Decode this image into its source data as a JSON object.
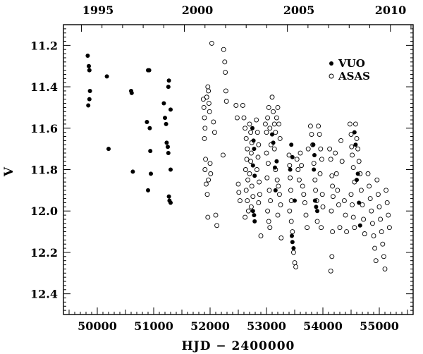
{
  "chart_data": {
    "type": "scatter",
    "xlabel": "HJD − 2400000",
    "ylabel": "V",
    "top_axis_ticks": [
      "1995",
      "2000",
      "2005",
      "2010"
    ],
    "xlim": [
      49400,
      55600
    ],
    "ylim": [
      12.5,
      11.1
    ],
    "y_inverted": true,
    "grid": false,
    "legend_position": "top-right",
    "x_ticks": [
      50000,
      51000,
      52000,
      53000,
      54000,
      55000
    ],
    "y_ticks": [
      11.2,
      11.4,
      11.6,
      11.8,
      12.0,
      12.2,
      12.4
    ],
    "series": [
      {
        "name": "VUO",
        "marker": "filled-circle",
        "color": "#000000",
        "points": [
          [
            49830,
            11.25
          ],
          [
            49850,
            11.3
          ],
          [
            49860,
            11.32
          ],
          [
            49870,
            11.42
          ],
          [
            49860,
            11.46
          ],
          [
            49840,
            11.49
          ],
          [
            50170,
            11.35
          ],
          [
            50200,
            11.7
          ],
          [
            50600,
            11.42
          ],
          [
            50610,
            11.43
          ],
          [
            50630,
            11.81
          ],
          [
            50900,
            11.32
          ],
          [
            50920,
            11.32
          ],
          [
            50880,
            11.57
          ],
          [
            50930,
            11.6
          ],
          [
            50940,
            11.71
          ],
          [
            50950,
            11.82
          ],
          [
            50900,
            11.9
          ],
          [
            51180,
            11.48
          ],
          [
            51200,
            11.55
          ],
          [
            51220,
            11.58
          ],
          [
            51260,
            11.4
          ],
          [
            51270,
            11.37
          ],
          [
            51300,
            11.51
          ],
          [
            51230,
            11.67
          ],
          [
            51250,
            11.69
          ],
          [
            51260,
            11.72
          ],
          [
            51300,
            11.8
          ],
          [
            51270,
            11.93
          ],
          [
            51280,
            11.95
          ],
          [
            51300,
            11.96
          ],
          [
            52750,
            11.6
          ],
          [
            52770,
            11.66
          ],
          [
            52780,
            11.7
          ],
          [
            52760,
            11.78
          ],
          [
            52790,
            11.83
          ],
          [
            52760,
            12.0
          ],
          [
            52780,
            12.02
          ],
          [
            52790,
            12.05
          ],
          [
            53100,
            11.63
          ],
          [
            53120,
            11.67
          ],
          [
            53150,
            11.79
          ],
          [
            53180,
            11.76
          ],
          [
            53160,
            11.9
          ],
          [
            53440,
            11.68
          ],
          [
            53460,
            11.74
          ],
          [
            53420,
            11.8
          ],
          [
            53450,
            12.12
          ],
          [
            53460,
            12.15
          ],
          [
            53480,
            12.18
          ],
          [
            53500,
            11.95
          ],
          [
            53830,
            11.68
          ],
          [
            53850,
            11.73
          ],
          [
            53840,
            11.8
          ],
          [
            53860,
            11.95
          ],
          [
            53880,
            11.98
          ],
          [
            53900,
            12.0
          ],
          [
            54560,
            11.62
          ],
          [
            54580,
            11.68
          ],
          [
            54600,
            11.85
          ],
          [
            54620,
            11.82
          ],
          [
            54640,
            11.96
          ],
          [
            54660,
            12.07
          ]
        ]
      },
      {
        "name": "ASAS",
        "marker": "open-circle",
        "color": "#000000",
        "points": [
          [
            51880,
            11.46
          ],
          [
            51890,
            11.5
          ],
          [
            51900,
            11.55
          ],
          [
            51910,
            11.6
          ],
          [
            51900,
            11.65
          ],
          [
            51920,
            11.75
          ],
          [
            51910,
            11.8
          ],
          [
            51930,
            11.87
          ],
          [
            51950,
            11.92
          ],
          [
            51960,
            12.03
          ],
          [
            51940,
            11.45
          ],
          [
            51960,
            11.4
          ],
          [
            51970,
            11.42
          ],
          [
            51980,
            11.48
          ],
          [
            51990,
            11.52
          ],
          [
            52000,
            11.77
          ],
          [
            52010,
            11.82
          ],
          [
            51970,
            11.85
          ],
          [
            52030,
            11.19
          ],
          [
            52060,
            11.57
          ],
          [
            52080,
            11.62
          ],
          [
            52100,
            12.02
          ],
          [
            52120,
            12.07
          ],
          [
            52240,
            11.22
          ],
          [
            52260,
            11.28
          ],
          [
            52270,
            11.33
          ],
          [
            52280,
            11.42
          ],
          [
            52290,
            11.47
          ],
          [
            52230,
            11.73
          ],
          [
            52460,
            11.49
          ],
          [
            52480,
            11.55
          ],
          [
            52500,
            11.87
          ],
          [
            52510,
            11.91
          ],
          [
            52530,
            11.95
          ],
          [
            52580,
            11.49
          ],
          [
            52600,
            11.55
          ],
          [
            52620,
            11.6
          ],
          [
            52640,
            11.65
          ],
          [
            52660,
            11.7
          ],
          [
            52650,
            11.75
          ],
          [
            52630,
            11.8
          ],
          [
            52670,
            11.85
          ],
          [
            52640,
            11.9
          ],
          [
            52660,
            11.95
          ],
          [
            52680,
            12.0
          ],
          [
            52620,
            12.03
          ],
          [
            52700,
            11.58
          ],
          [
            52720,
            11.62
          ],
          [
            52740,
            11.67
          ],
          [
            52730,
            11.72
          ],
          [
            52720,
            11.76
          ],
          [
            52700,
            11.82
          ],
          [
            52740,
            11.88
          ],
          [
            52760,
            11.93
          ],
          [
            52730,
            11.98
          ],
          [
            52820,
            11.56
          ],
          [
            52840,
            11.62
          ],
          [
            52860,
            11.68
          ],
          [
            52850,
            11.74
          ],
          [
            52830,
            11.8
          ],
          [
            52870,
            11.86
          ],
          [
            52880,
            11.92
          ],
          [
            52860,
            11.96
          ],
          [
            52900,
            12.12
          ],
          [
            52980,
            11.58
          ],
          [
            53000,
            11.62
          ],
          [
            53020,
            11.55
          ],
          [
            53040,
            11.5
          ],
          [
            53060,
            11.6
          ],
          [
            53080,
            11.68
          ],
          [
            53000,
            11.72
          ],
          [
            53030,
            11.77
          ],
          [
            53010,
            11.84
          ],
          [
            53050,
            11.9
          ],
          [
            53070,
            11.95
          ],
          [
            53020,
            12.0
          ],
          [
            53040,
            12.05
          ],
          [
            53060,
            12.08
          ],
          [
            53100,
            11.45
          ],
          [
            53120,
            11.52
          ],
          [
            53140,
            11.58
          ],
          [
            53160,
            11.62
          ],
          [
            53180,
            11.55
          ],
          [
            53200,
            11.5
          ],
          [
            53220,
            11.58
          ],
          [
            53240,
            11.65
          ],
          [
            53140,
            11.7
          ],
          [
            53160,
            11.8
          ],
          [
            53190,
            11.85
          ],
          [
            53210,
            11.88
          ],
          [
            53230,
            11.92
          ],
          [
            53250,
            11.97
          ],
          [
            53200,
            12.02
          ],
          [
            53260,
            12.13
          ],
          [
            53400,
            11.73
          ],
          [
            53410,
            11.78
          ],
          [
            53420,
            11.84
          ],
          [
            53430,
            11.9
          ],
          [
            53440,
            11.95
          ],
          [
            53410,
            12.0
          ],
          [
            53440,
            12.05
          ],
          [
            53460,
            12.1
          ],
          [
            53480,
            12.2
          ],
          [
            53500,
            12.25
          ],
          [
            53520,
            12.27
          ],
          [
            53540,
            11.75
          ],
          [
            53560,
            11.8
          ],
          [
            53580,
            11.85
          ],
          [
            53600,
            11.72
          ],
          [
            53620,
            11.78
          ],
          [
            53640,
            11.88
          ],
          [
            53660,
            11.92
          ],
          [
            53680,
            11.96
          ],
          [
            53700,
            12.02
          ],
          [
            53720,
            12.08
          ],
          [
            53740,
            11.7
          ],
          [
            53780,
            11.59
          ],
          [
            53800,
            11.63
          ],
          [
            53820,
            11.68
          ],
          [
            53840,
            11.77
          ],
          [
            53860,
            11.85
          ],
          [
            53870,
            11.9
          ],
          [
            53890,
            11.95
          ],
          [
            53900,
            12.05
          ],
          [
            53920,
            11.59
          ],
          [
            53940,
            11.63
          ],
          [
            53960,
            11.7
          ],
          [
            53980,
            11.75
          ],
          [
            53950,
            11.82
          ],
          [
            53990,
            11.92
          ],
          [
            54000,
            11.98
          ],
          [
            53970,
            12.08
          ],
          [
            54120,
            11.7
          ],
          [
            54140,
            11.75
          ],
          [
            54160,
            11.83
          ],
          [
            54170,
            11.88
          ],
          [
            54180,
            11.93
          ],
          [
            54150,
            12.0
          ],
          [
            54170,
            12.1
          ],
          [
            54160,
            12.22
          ],
          [
            54140,
            12.29
          ],
          [
            54220,
            11.72
          ],
          [
            54240,
            11.82
          ],
          [
            54260,
            11.9
          ],
          [
            54280,
            11.97
          ],
          [
            54300,
            12.08
          ],
          [
            54320,
            11.66
          ],
          [
            54340,
            11.76
          ],
          [
            54380,
            11.95
          ],
          [
            54400,
            12.02
          ],
          [
            54420,
            12.1
          ],
          [
            54480,
            11.58
          ],
          [
            54500,
            11.63
          ],
          [
            54510,
            11.69
          ],
          [
            54520,
            11.73
          ],
          [
            54540,
            11.79
          ],
          [
            54560,
            11.86
          ],
          [
            54500,
            11.92
          ],
          [
            54520,
            11.97
          ],
          [
            54540,
            12.03
          ],
          [
            54560,
            12.08
          ],
          [
            54580,
            11.58
          ],
          [
            54600,
            11.65
          ],
          [
            54620,
            11.7
          ],
          [
            54640,
            11.76
          ],
          [
            54660,
            11.82
          ],
          [
            54680,
            11.9
          ],
          [
            54700,
            11.97
          ],
          [
            54720,
            12.04
          ],
          [
            54740,
            12.11
          ],
          [
            54800,
            11.82
          ],
          [
            54820,
            11.88
          ],
          [
            54840,
            11.94
          ],
          [
            54860,
            12.0
          ],
          [
            54880,
            12.06
          ],
          [
            54900,
            12.12
          ],
          [
            54920,
            12.18
          ],
          [
            54940,
            12.24
          ],
          [
            54960,
            11.85
          ],
          [
            54980,
            11.92
          ],
          [
            55000,
            11.98
          ],
          [
            55020,
            12.04
          ],
          [
            55040,
            12.1
          ],
          [
            55060,
            12.16
          ],
          [
            55080,
            12.22
          ],
          [
            55100,
            12.28
          ],
          [
            55120,
            11.9
          ],
          [
            55140,
            11.96
          ],
          [
            55160,
            12.02
          ],
          [
            55180,
            12.08
          ]
        ]
      }
    ]
  }
}
